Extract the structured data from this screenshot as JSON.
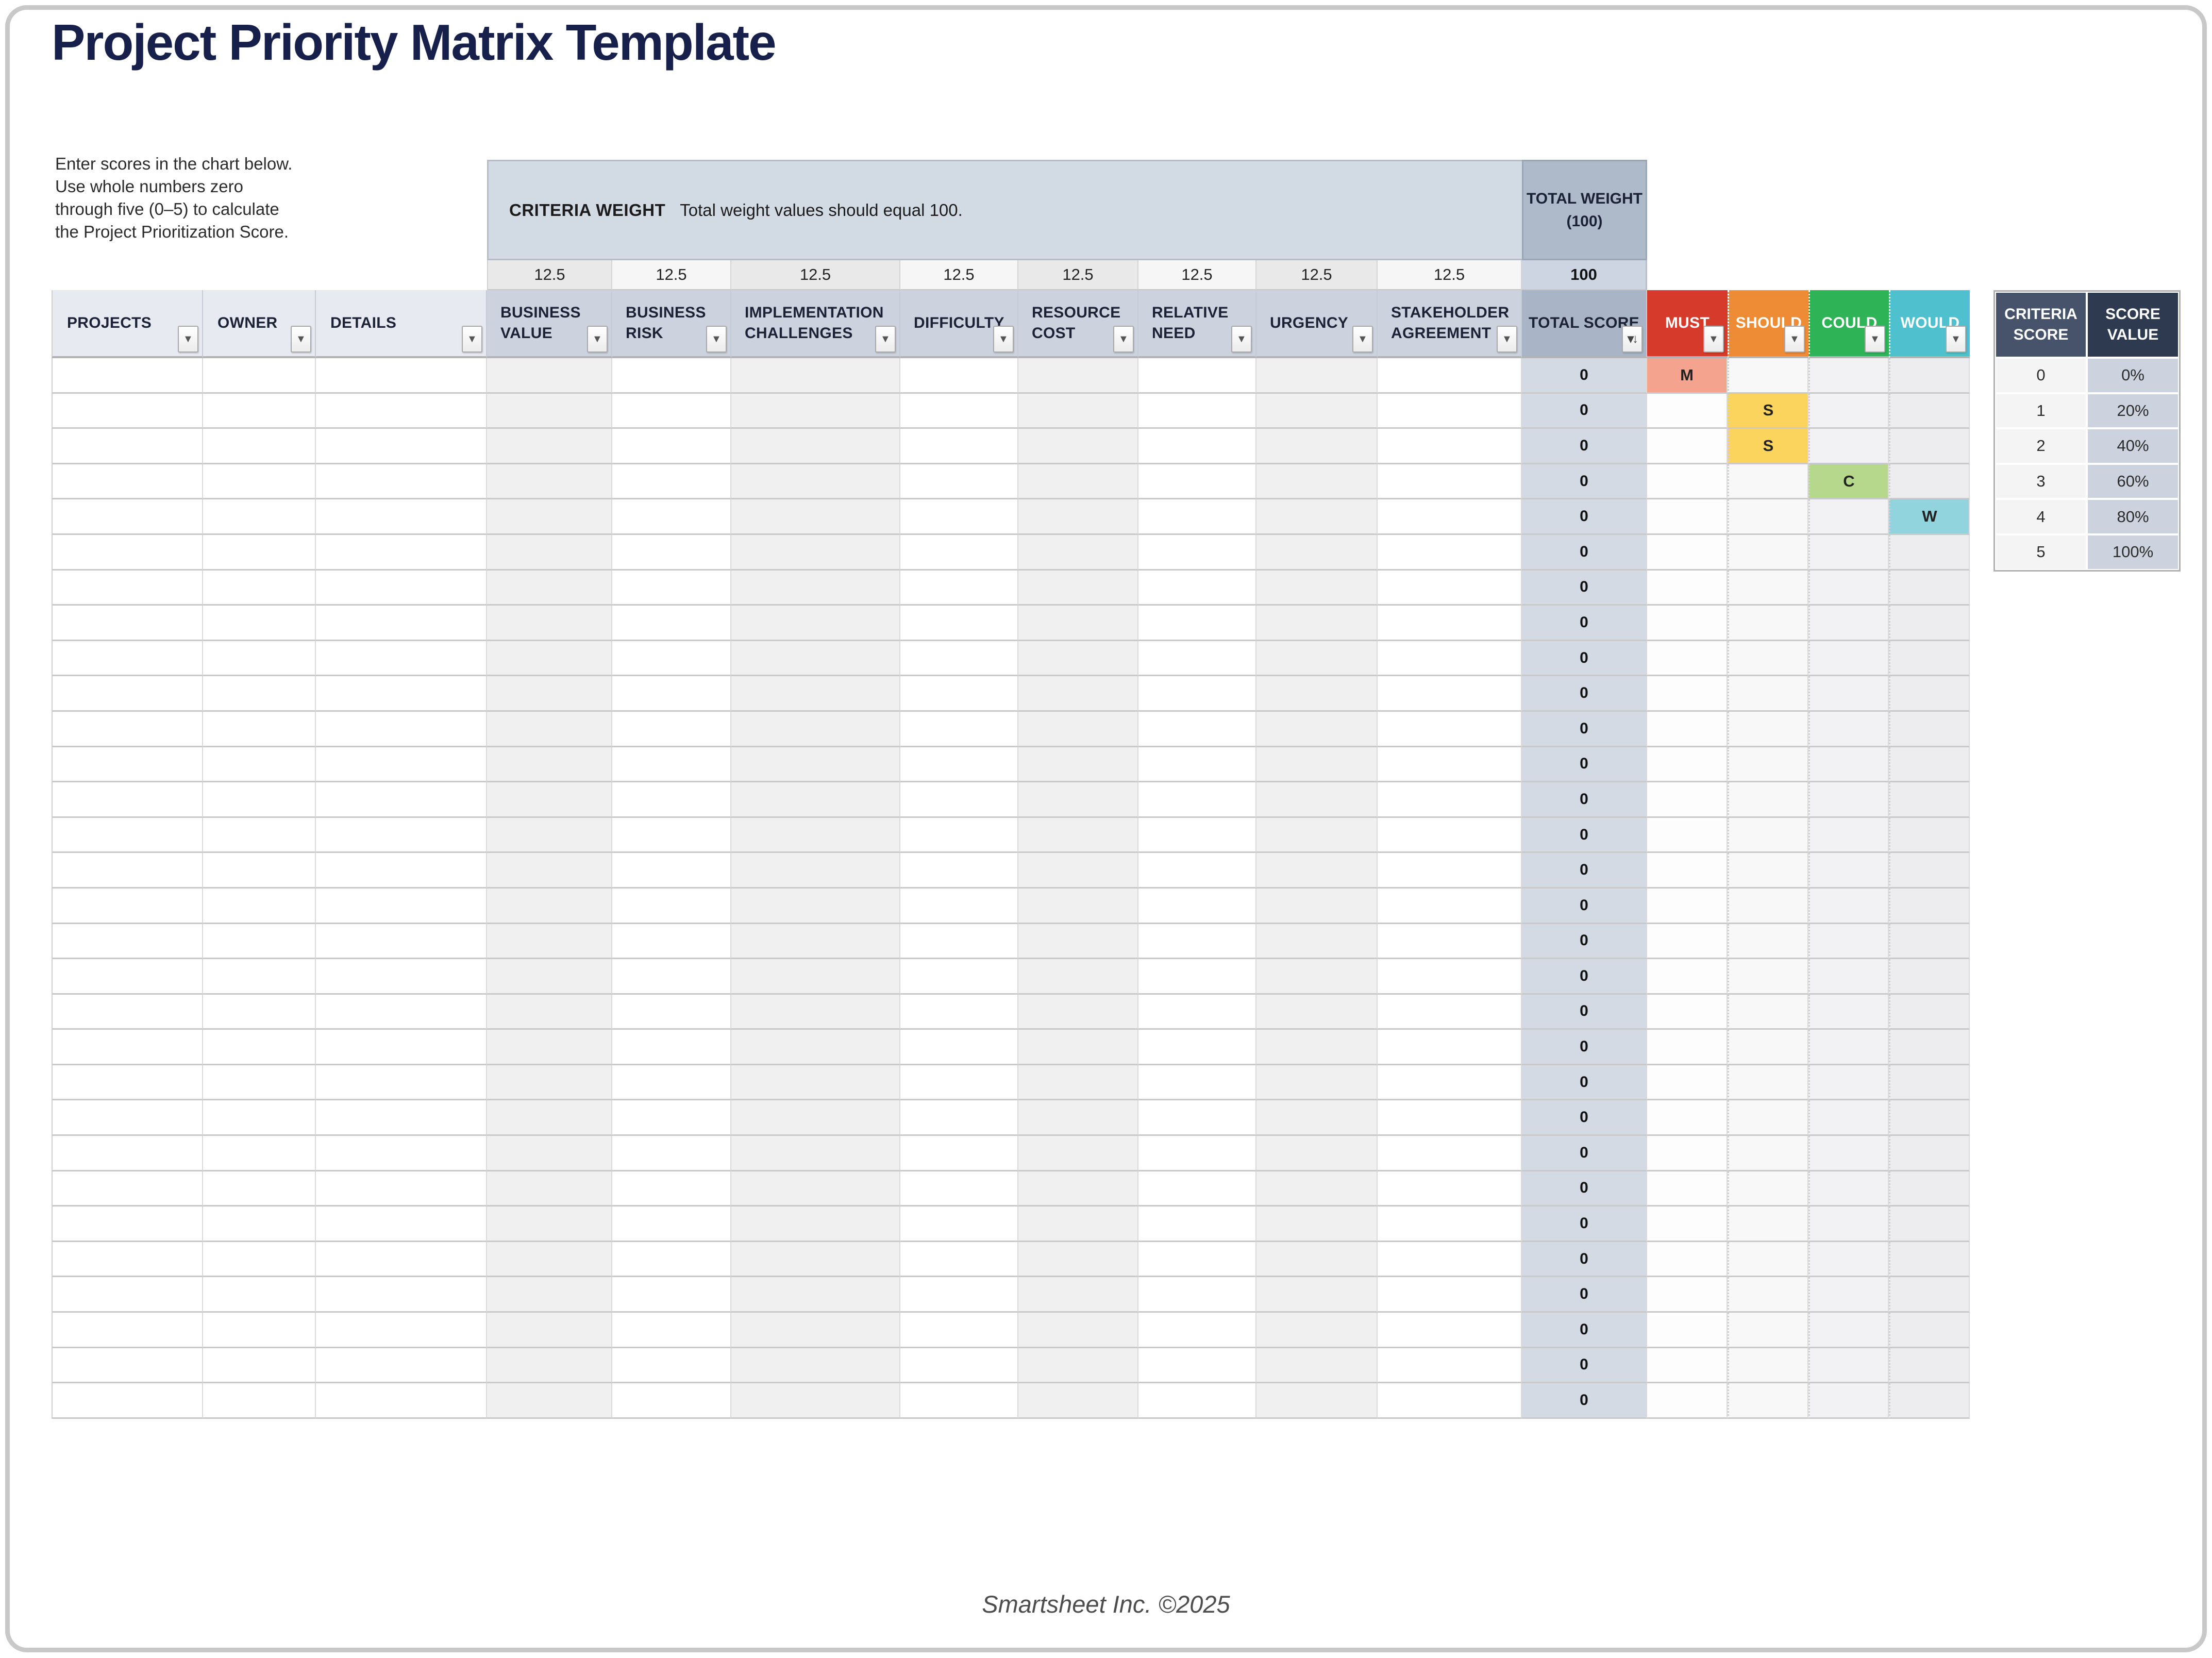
{
  "page": {
    "title": "Project Priority Matrix Template",
    "footer": "Smartsheet Inc. ©2025"
  },
  "instructions": [
    "Enter scores in the chart below.",
    "Use whole numbers zero",
    "through five (0–5) to calculate",
    "the Project Prioritization Score."
  ],
  "criteria_weight_bar": {
    "label": "CRITERIA WEIGHT",
    "note": "Total weight values should equal 100."
  },
  "total_weight": {
    "header_line1": "TOTAL WEIGHT",
    "header_line2": "(100)",
    "value": "100"
  },
  "columns": {
    "left": [
      {
        "label": "PROJECTS"
      },
      {
        "label": "OWNER"
      },
      {
        "label": "DETAILS"
      }
    ],
    "criteria": [
      {
        "label": "BUSINESS VALUE",
        "weight": "12.5"
      },
      {
        "label": "BUSINESS RISK",
        "weight": "12.5"
      },
      {
        "label": "IMPLEMENTATION CHALLENGES",
        "weight": "12.5"
      },
      {
        "label": "DIFFICULTY",
        "weight": "12.5"
      },
      {
        "label": "RESOURCE COST",
        "weight": "12.5"
      },
      {
        "label": "RELATIVE NEED",
        "weight": "12.5"
      },
      {
        "label": "URGENCY",
        "weight": "12.5"
      },
      {
        "label": "STAKEHOLDER AGREEMENT",
        "weight": "12.5"
      }
    ],
    "total_score": {
      "label": "TOTAL SCORE"
    },
    "moscow": [
      {
        "label": "MUST",
        "header_color": "#d53a2b",
        "cell_color": "#f4a38e",
        "marker": "M"
      },
      {
        "label": "SHOULD",
        "header_color": "#ee8b35",
        "cell_color": "#fbd45e",
        "marker": "S"
      },
      {
        "label": "COULD",
        "header_color": "#2eb457",
        "cell_color": "#b5d88d",
        "marker": "C"
      },
      {
        "label": "WOULD",
        "header_color": "#4fc1ce",
        "cell_color": "#92d4dd",
        "marker": "W"
      }
    ]
  },
  "rows": [
    {
      "total_score": "0",
      "marker_col": "MUST"
    },
    {
      "total_score": "0",
      "marker_col": "SHOULD"
    },
    {
      "total_score": "0",
      "marker_col": "SHOULD"
    },
    {
      "total_score": "0",
      "marker_col": "COULD"
    },
    {
      "total_score": "0",
      "marker_col": "WOULD"
    },
    {
      "total_score": "0",
      "marker_col": null
    },
    {
      "total_score": "0",
      "marker_col": null
    },
    {
      "total_score": "0",
      "marker_col": null
    },
    {
      "total_score": "0",
      "marker_col": null
    },
    {
      "total_score": "0",
      "marker_col": null
    },
    {
      "total_score": "0",
      "marker_col": null
    },
    {
      "total_score": "0",
      "marker_col": null
    },
    {
      "total_score": "0",
      "marker_col": null
    },
    {
      "total_score": "0",
      "marker_col": null
    },
    {
      "total_score": "0",
      "marker_col": null
    },
    {
      "total_score": "0",
      "marker_col": null
    },
    {
      "total_score": "0",
      "marker_col": null
    },
    {
      "total_score": "0",
      "marker_col": null
    },
    {
      "total_score": "0",
      "marker_col": null
    },
    {
      "total_score": "0",
      "marker_col": null
    },
    {
      "total_score": "0",
      "marker_col": null
    },
    {
      "total_score": "0",
      "marker_col": null
    },
    {
      "total_score": "0",
      "marker_col": null
    },
    {
      "total_score": "0",
      "marker_col": null
    },
    {
      "total_score": "0",
      "marker_col": null
    },
    {
      "total_score": "0",
      "marker_col": null
    },
    {
      "total_score": "0",
      "marker_col": null
    },
    {
      "total_score": "0",
      "marker_col": null
    },
    {
      "total_score": "0",
      "marker_col": null
    },
    {
      "total_score": "0",
      "marker_col": null
    }
  ],
  "legend": {
    "headers": [
      "CRITERIA SCORE",
      "SCORE VALUE"
    ],
    "rows": [
      {
        "score": "0",
        "value": "0%"
      },
      {
        "score": "1",
        "value": "20%"
      },
      {
        "score": "2",
        "value": "40%"
      },
      {
        "score": "3",
        "value": "60%"
      },
      {
        "score": "4",
        "value": "80%"
      },
      {
        "score": "5",
        "value": "100%"
      }
    ]
  }
}
